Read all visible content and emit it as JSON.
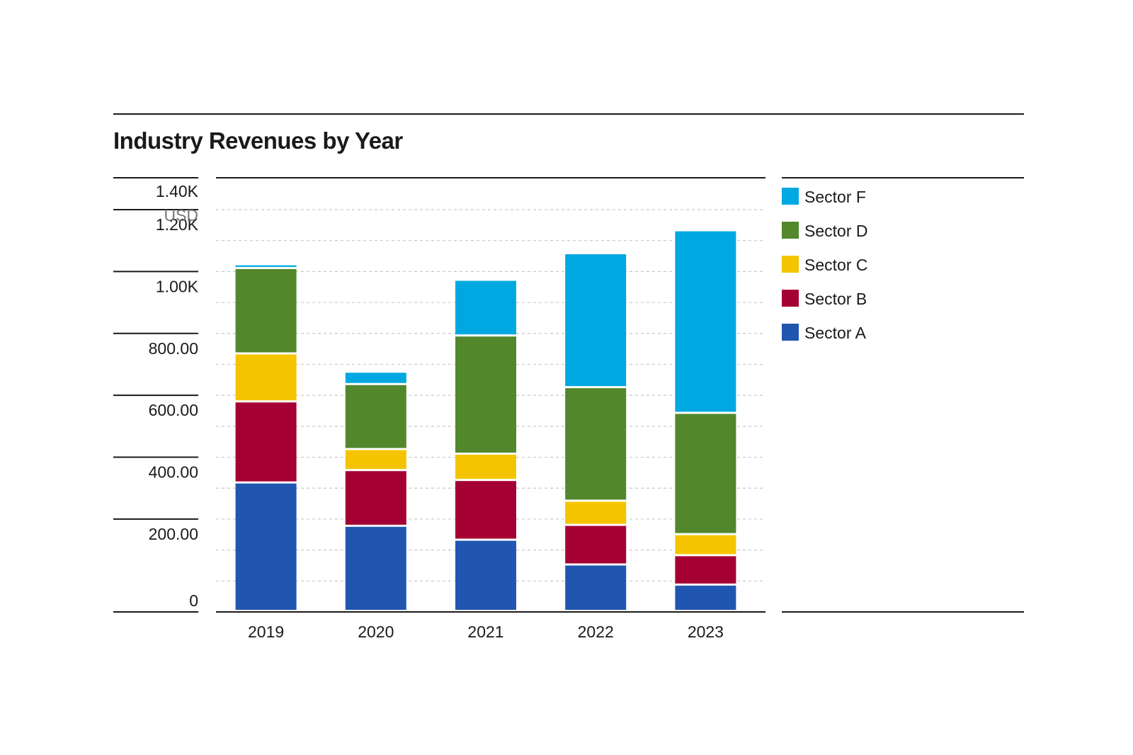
{
  "chart_data": {
    "type": "bar",
    "stacked": true,
    "title": "Industry Revenues by Year",
    "ylabel": "USD",
    "ylim": [
      0,
      1400
    ],
    "yticks": [
      0,
      200,
      400,
      600,
      800,
      1000,
      1200,
      1400
    ],
    "ytick_labels": [
      "0",
      "200.00",
      "400.00",
      "600.00",
      "800.00",
      "1.00K",
      "1.20K",
      "1.40K"
    ],
    "categories": [
      "2019",
      "2020",
      "2021",
      "2022",
      "2023"
    ],
    "series": [
      {
        "name": "Sector A",
        "color": "#2156b0",
        "values": [
          415,
          275,
          230,
          150,
          85
        ]
      },
      {
        "name": "Sector B",
        "color": "#a50034",
        "values": [
          262,
          180,
          193,
          128,
          95
        ]
      },
      {
        "name": "Sector C",
        "color": "#f5c400",
        "values": [
          155,
          68,
          85,
          78,
          68
        ]
      },
      {
        "name": "Sector D",
        "color": "#52872c",
        "values": [
          276,
          210,
          382,
          367,
          392
        ]
      },
      {
        "name": "Sector F",
        "color": "#00a8e1",
        "values": [
          12,
          40,
          180,
          433,
          590
        ]
      }
    ],
    "legend_order": [
      "Sector F",
      "Sector D",
      "Sector C",
      "Sector B",
      "Sector A"
    ],
    "legend_position": "right",
    "grid": true
  }
}
